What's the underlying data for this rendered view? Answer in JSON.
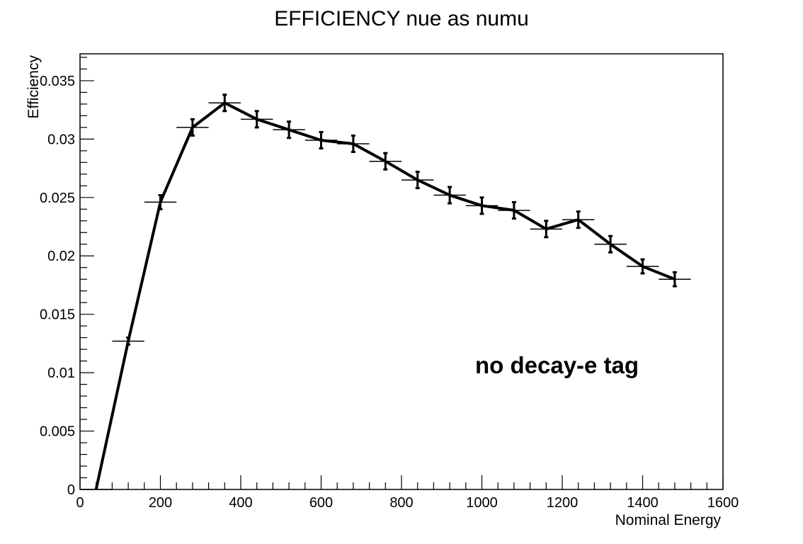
{
  "chart_data": {
    "type": "line",
    "title": "EFFICIENCY nue as numu",
    "xlabel": "Nominal Energy",
    "ylabel": "Efficiency",
    "xlim": [
      0,
      1600
    ],
    "ylim": [
      0,
      0.0373
    ],
    "x_ticks": [
      {
        "value": 0,
        "label": "0"
      },
      {
        "value": 200,
        "label": "200"
      },
      {
        "value": 400,
        "label": "400"
      },
      {
        "value": 600,
        "label": "600"
      },
      {
        "value": 800,
        "label": "800"
      },
      {
        "value": 1000,
        "label": "1000"
      },
      {
        "value": 1200,
        "label": "1200"
      },
      {
        "value": 1400,
        "label": "1400"
      },
      {
        "value": 1600,
        "label": "1600"
      }
    ],
    "y_ticks": [
      {
        "value": 0,
        "label": "0"
      },
      {
        "value": 0.005,
        "label": "0.005"
      },
      {
        "value": 0.01,
        "label": "0.01"
      },
      {
        "value": 0.015,
        "label": "0.015"
      },
      {
        "value": 0.02,
        "label": "0.02"
      },
      {
        "value": 0.025,
        "label": "0.025"
      },
      {
        "value": 0.03,
        "label": "0.03"
      },
      {
        "value": 0.035,
        "label": "0.035"
      }
    ],
    "grid": false,
    "annotation": "no decay-e tag",
    "series": [
      {
        "color": "#000000",
        "x": [
          40,
          120,
          200,
          280,
          360,
          440,
          520,
          600,
          680,
          760,
          840,
          920,
          1000,
          1080,
          1160,
          1240,
          1320,
          1400,
          1480
        ],
        "y": [
          0,
          0.0127,
          0.0246,
          0.031,
          0.0331,
          0.0317,
          0.0308,
          0.0299,
          0.0296,
          0.0281,
          0.0265,
          0.0252,
          0.0243,
          0.0239,
          0.0223,
          0.0231,
          0.021,
          0.0191,
          0.018
        ],
        "yerr": [
          0,
          0.0003,
          0.0006,
          0.0007,
          0.0007,
          0.0007,
          0.0007,
          0.0007,
          0.0007,
          0.0007,
          0.0007,
          0.0007,
          0.0007,
          0.0007,
          0.0007,
          0.0007,
          0.0007,
          0.0006,
          0.0006
        ],
        "xerr": 40
      }
    ]
  }
}
